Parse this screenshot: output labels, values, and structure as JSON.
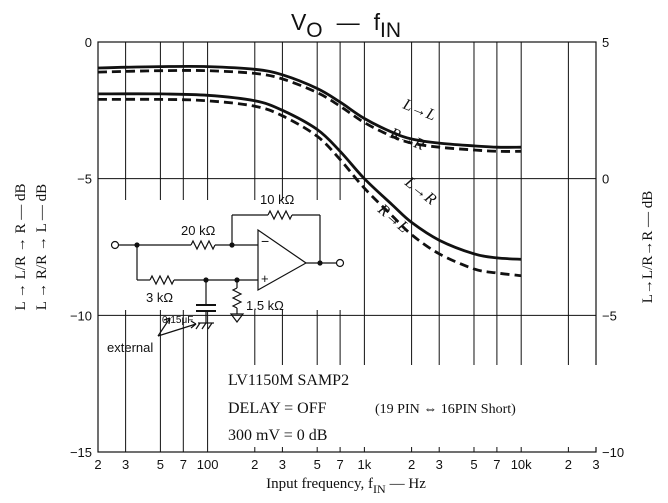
{
  "chart_data": {
    "type": "line",
    "title": "Vₒ — fᴵᴺ",
    "title_parts": {
      "v": "V",
      "v_sub": "O",
      "dash": "—",
      "f": "f",
      "f_sub": "IN"
    },
    "xlabel": "Input frequency, f",
    "xlabel_sub": "IN",
    "xlabel_unit": "— Hz",
    "x_scale": "log",
    "xlim": [
      20,
      30000
    ],
    "x_tick_labels": [
      {
        "value": 20,
        "label": "2"
      },
      {
        "value": 30,
        "label": "3"
      },
      {
        "value": 50,
        "label": "5"
      },
      {
        "value": 70,
        "label": "7"
      },
      {
        "value": 100,
        "label": "100"
      },
      {
        "value": 200,
        "label": "2"
      },
      {
        "value": 300,
        "label": "3"
      },
      {
        "value": 500,
        "label": "5"
      },
      {
        "value": 700,
        "label": "7"
      },
      {
        "value": 1000,
        "label": "1k"
      },
      {
        "value": 2000,
        "label": "2"
      },
      {
        "value": 3000,
        "label": "3"
      },
      {
        "value": 5000,
        "label": "5"
      },
      {
        "value": 7000,
        "label": "7"
      },
      {
        "value": 10000,
        "label": "10k"
      },
      {
        "value": 20000,
        "label": "2"
      },
      {
        "value": 30000,
        "label": "3"
      }
    ],
    "y_left": {
      "lim": [
        -15,
        0
      ],
      "ticks": [
        0,
        -5,
        -10,
        -15
      ],
      "tick_labels": [
        "0",
        "−5",
        "−10",
        "−15"
      ],
      "label_1": "L → L/R → R — dB",
      "label_2": "L → R/R → L — dB"
    },
    "y_right": {
      "lim": [
        -10,
        5
      ],
      "ticks": [
        5,
        0,
        -5,
        -10
      ],
      "tick_labels": [
        "5",
        "0",
        "−5",
        "−10"
      ],
      "label": "L→L/R→R — dB"
    },
    "grid": true,
    "series": [
      {
        "name": "L→L",
        "axis": "right",
        "style": "solid",
        "x": [
          20,
          50,
          100,
          200,
          300,
          500,
          700,
          1000,
          1500,
          2000,
          3000,
          5000,
          7000,
          10000
        ],
        "y": [
          4.05,
          4.1,
          4.1,
          4.0,
          3.8,
          3.3,
          2.8,
          2.2,
          1.7,
          1.45,
          1.3,
          1.2,
          1.15,
          1.15
        ]
      },
      {
        "name": "R→R",
        "axis": "right",
        "style": "dashed",
        "x": [
          20,
          50,
          100,
          200,
          300,
          500,
          700,
          1000,
          1500,
          2000,
          3000,
          5000,
          7000,
          10000
        ],
        "y": [
          3.9,
          3.95,
          3.95,
          3.85,
          3.65,
          3.15,
          2.65,
          2.05,
          1.55,
          1.3,
          1.15,
          1.05,
          1.0,
          1.0
        ]
      },
      {
        "name": "L→R",
        "axis": "left",
        "style": "solid",
        "x": [
          20,
          50,
          100,
          200,
          300,
          500,
          700,
          1000,
          1500,
          2000,
          3000,
          5000,
          7000,
          10000
        ],
        "y": [
          -1.9,
          -1.9,
          -1.95,
          -2.15,
          -2.5,
          -3.2,
          -4.0,
          -5.0,
          -5.95,
          -6.6,
          -7.25,
          -7.75,
          -7.9,
          -7.95
        ]
      },
      {
        "name": "R→L",
        "axis": "left",
        "style": "dashed",
        "x": [
          20,
          50,
          100,
          200,
          300,
          500,
          700,
          1000,
          1500,
          2000,
          3000,
          5000,
          7000,
          10000
        ],
        "y": [
          -2.1,
          -2.1,
          -2.15,
          -2.35,
          -2.7,
          -3.45,
          -4.3,
          -5.35,
          -6.35,
          -7.05,
          -7.75,
          -8.3,
          -8.45,
          -8.55
        ]
      }
    ],
    "curve_labels": [
      {
        "series": "L→L",
        "left": "L",
        "arrow": "→",
        "right": "L"
      },
      {
        "series": "R→R",
        "left": "R",
        "arrow": "→",
        "right": "R"
      },
      {
        "series": "L→R",
        "left": "L",
        "arrow": "→",
        "right": "R"
      },
      {
        "series": "R→L",
        "left": "R",
        "arrow": "→",
        "right": "L"
      }
    ],
    "annotations": {
      "part": "LV1150M SAMP2",
      "delay": "DELAY = OFF",
      "pin_note": "(19 PIN ⇔ 16PIN Short)",
      "reference": "300 mV = 0 dB"
    },
    "circuit": {
      "r_feedback": "10 kΩ",
      "r_input": "20 kΩ",
      "r_series": "3 kΩ",
      "r_bias": "1.5 kΩ",
      "capacitor": "0.15μF",
      "external": "external",
      "minus": "−",
      "plus": "+"
    }
  }
}
